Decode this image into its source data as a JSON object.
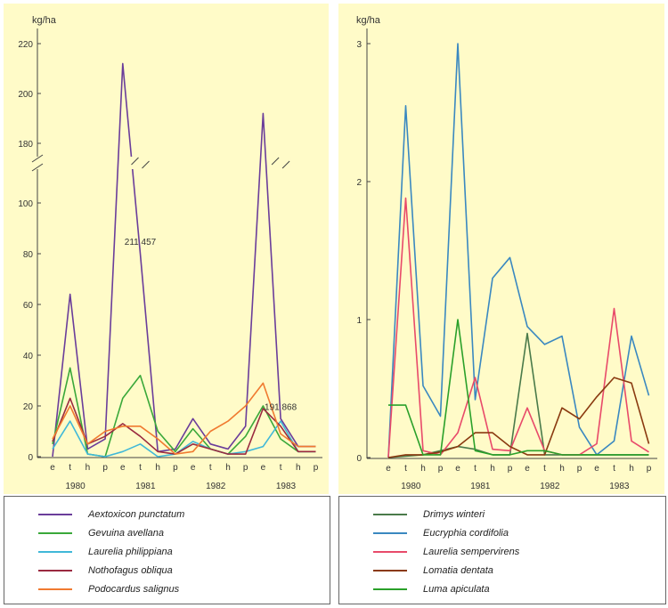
{
  "chart_data": [
    {
      "type": "line",
      "ylabel": "kg/ha",
      "axis_break": [
        110,
        170
      ],
      "yticks": [
        0,
        20,
        40,
        60,
        80,
        100,
        180,
        200,
        220
      ],
      "ylim_lower": [
        0,
        110
      ],
      "ylim_upper": [
        170,
        225
      ],
      "x_ticks": [
        "e",
        "t",
        "h",
        "p",
        "e",
        "t",
        "h",
        "p",
        "e",
        "t",
        "h",
        "p",
        "e",
        "t",
        "h",
        "p"
      ],
      "years": [
        "1980",
        "1981",
        "1982",
        "1983"
      ],
      "annotations": [
        {
          "text": "211 457",
          "index": 5
        },
        {
          "text": "191 868",
          "index": 13
        }
      ],
      "series": [
        {
          "name": "Aextoxicon punctatum",
          "color": "#6a3d9a",
          "values": [
            0,
            64,
            3,
            7,
            212,
            80,
            2,
            3,
            15,
            5,
            3,
            12,
            192,
            15,
            4,
            4
          ]
        },
        {
          "name": "Gevuina avellana",
          "color": "#3aa83a",
          "values": [
            5,
            35,
            1,
            0,
            23,
            32,
            10,
            2,
            11,
            3,
            1,
            8,
            20,
            7,
            2,
            2
          ]
        },
        {
          "name": "Laurelia philippiana",
          "color": "#40b8d8",
          "values": [
            3,
            14,
            1,
            0,
            2,
            5,
            0,
            1,
            6,
            3,
            1,
            2,
            4,
            14,
            2,
            2
          ]
        },
        {
          "name": "Nothofagus obliqua",
          "color": "#9a2a40",
          "values": [
            6,
            23,
            5,
            8,
            13,
            8,
            2,
            1,
            5,
            3,
            1,
            1,
            19,
            12,
            2,
            2
          ]
        },
        {
          "name": "Podocardus salignus",
          "color": "#f07a30",
          "values": [
            7,
            20,
            5,
            10,
            12,
            12,
            7,
            1,
            2,
            10,
            14,
            20,
            29,
            9,
            4,
            4
          ]
        }
      ]
    },
    {
      "type": "line",
      "ylabel": "kg/ha",
      "yticks": [
        0,
        1,
        2,
        3
      ],
      "ylim": [
        0,
        3.1
      ],
      "x_ticks": [
        "e",
        "t",
        "h",
        "p",
        "e",
        "t",
        "h",
        "p",
        "e",
        "t",
        "h",
        "p",
        "e",
        "t",
        "h",
        "p"
      ],
      "years": [
        "1980",
        "1981",
        "1982",
        "1983"
      ],
      "series": [
        {
          "name": "Drimys winteri",
          "color": "#4a7a4a",
          "values": [
            0,
            0.01,
            0.02,
            0.05,
            0.08,
            0.06,
            0.02,
            0.02,
            0.9,
            0.02,
            0.02,
            0.02,
            0.02,
            0.02,
            0.02,
            0.02
          ]
        },
        {
          "name": "Eucryphia cordifolia",
          "color": "#3a88c0",
          "values": [
            0,
            2.55,
            0.52,
            0.3,
            3.0,
            0.42,
            1.3,
            1.45,
            0.95,
            0.82,
            0.88,
            0.22,
            0.02,
            0.12,
            0.88,
            0.45
          ]
        },
        {
          "name": "Laurelia sempervirens",
          "color": "#e84a6a",
          "values": [
            0,
            1.88,
            0.05,
            0.02,
            0.18,
            0.58,
            0.06,
            0.05,
            0.36,
            0.05,
            0.02,
            0.02,
            0.1,
            1.08,
            0.12,
            0.04
          ]
        },
        {
          "name": "Lomatia dentata",
          "color": "#8a3a10",
          "values": [
            0,
            0.02,
            0.02,
            0.04,
            0.08,
            0.18,
            0.18,
            0.08,
            0.02,
            0.02,
            0.36,
            0.28,
            0.44,
            0.58,
            0.54,
            0.1
          ]
        },
        {
          "name": "Luma apiculata",
          "color": "#2aa02a",
          "values": [
            0.38,
            0.38,
            0.02,
            0.02,
            1.0,
            0.05,
            0.02,
            0.02,
            0.05,
            0.05,
            0.02,
            0.02,
            0.02,
            0.02,
            0.02,
            0.02
          ]
        }
      ]
    }
  ]
}
